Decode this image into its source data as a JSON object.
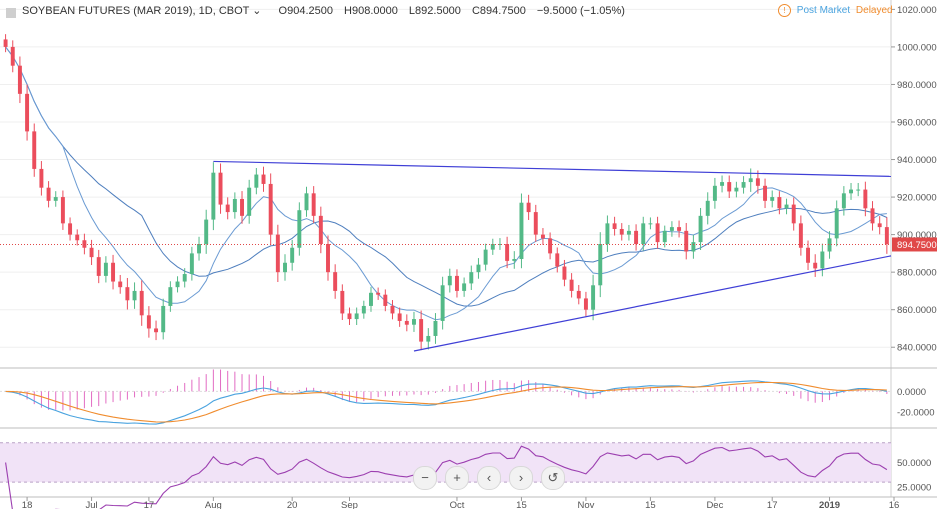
{
  "header": {
    "symbol": "SOYBEAN FUTURES (MAR 2019), 1D, CBOT",
    "dropdown_glyph": "⌄",
    "open": "O904.2500",
    "high": "H908.0000",
    "low": "L892.5000",
    "close": "C894.7500",
    "change": "−9.5000 (−1.05%)",
    "post_market": "Post Market",
    "delayed": "Delayed",
    "info_glyph": "!"
  },
  "colors": {
    "up": "#53b987",
    "down": "#eb4d5c",
    "trend": "#3f3fd6",
    "ma_fast": "#6b9bd3",
    "ma_slow": "#4f7fbe",
    "macd": "#4aa3df",
    "signal": "#f08c2e",
    "hist": "#e26cc3",
    "rsi": "#9c3fb0",
    "rsi_bg": "#f1e3f7",
    "price_line": "#e04848",
    "axis_text": "#555555"
  },
  "toolbar": {
    "zoom_out": "−",
    "zoom_in": "+",
    "back": "‹",
    "forward": "›",
    "reset": "↺"
  },
  "chart_data": [
    {
      "type": "candlestick",
      "name": "price",
      "ylim": [
        830,
        1025
      ],
      "yticks": [
        840,
        860,
        880,
        900,
        920,
        940,
        960,
        980,
        1000,
        1020
      ],
      "ytick_labels": [
        "840.0000",
        "860.0000",
        "880.0000",
        "900.0000",
        "920.0000",
        "940.0000",
        "960.0000",
        "980.0000",
        "1000.0000",
        "1020.0000"
      ],
      "last_price": 894.75,
      "last_price_label": "894.7500",
      "x_ticks": [
        {
          "index": 3,
          "label": "18"
        },
        {
          "index": 12,
          "label": "Jul"
        },
        {
          "index": 20,
          "label": "17"
        },
        {
          "index": 29,
          "label": "Aug"
        },
        {
          "index": 40,
          "label": "20"
        },
        {
          "index": 48,
          "label": "Sep"
        },
        {
          "index": 63,
          "label": "Oct"
        },
        {
          "index": 72,
          "label": "15"
        },
        {
          "index": 81,
          "label": "Nov"
        },
        {
          "index": 90,
          "label": "15"
        },
        {
          "index": 99,
          "label": "Dec"
        },
        {
          "index": 107,
          "label": "17"
        },
        {
          "index": 115,
          "label": "2019"
        },
        {
          "index": 124,
          "label": "16"
        }
      ],
      "closes": [
        1000,
        990,
        975,
        955,
        935,
        925,
        918,
        920,
        906,
        900,
        897,
        893,
        888,
        878,
        885,
        875,
        872,
        865,
        870,
        857,
        850,
        848,
        862,
        872,
        875,
        879,
        890,
        895,
        908,
        933,
        916,
        912,
        919,
        910,
        925,
        932,
        927,
        900,
        880,
        885,
        893,
        913,
        922,
        910,
        895,
        880,
        870,
        858,
        855,
        858,
        862,
        869,
        868,
        862,
        858,
        854,
        852,
        855,
        843,
        846,
        854,
        873,
        878,
        870,
        874,
        880,
        884,
        892,
        895,
        895,
        886,
        887,
        917,
        912,
        900,
        898,
        890,
        883,
        876,
        870,
        866,
        860,
        873,
        895,
        906,
        903,
        900,
        902,
        895,
        906,
        906,
        896,
        902,
        904,
        902,
        891,
        896,
        910,
        918,
        926,
        928,
        923,
        925,
        928,
        930,
        926,
        918,
        920,
        914,
        916,
        906,
        893,
        885,
        882,
        891,
        898,
        914,
        922,
        924,
        924,
        914,
        906,
        904,
        895
      ],
      "ranges": [
        8,
        10,
        14,
        14,
        12,
        12,
        10,
        9,
        10,
        9,
        8,
        10,
        12,
        11,
        10,
        12,
        10,
        14,
        13,
        16,
        14,
        12,
        11,
        9,
        8,
        9,
        10,
        11,
        15,
        16,
        14,
        11,
        10,
        12,
        12,
        10,
        12,
        16,
        15,
        13,
        12,
        12,
        10,
        11,
        14,
        13,
        12,
        10,
        9,
        9,
        8,
        9,
        8,
        8,
        9,
        9,
        10,
        11,
        13,
        12,
        12,
        13,
        11,
        10,
        9,
        10,
        10,
        9,
        8,
        9,
        11,
        12,
        14,
        12,
        11,
        10,
        9,
        9,
        10,
        10,
        9,
        10,
        16,
        18,
        12,
        10,
        9,
        9,
        10,
        10,
        9,
        10,
        8,
        9,
        10,
        12,
        11,
        12,
        13,
        12,
        10,
        10,
        9,
        9,
        15,
        12,
        11,
        10,
        9,
        9,
        11,
        12,
        11,
        13,
        12,
        11,
        12,
        11,
        10,
        10,
        12,
        11,
        11,
        15
      ],
      "trendlines": [
        {
          "from": [
            29,
            939
          ],
          "to": [
            124,
            931
          ]
        },
        {
          "from": [
            57,
            838
          ],
          "to": [
            124,
            889
          ]
        }
      ]
    },
    {
      "type": "line",
      "name": "macd",
      "ylim": [
        -34,
        22
      ],
      "yticks": [
        0,
        -20
      ],
      "ytick_labels": [
        "0.0000",
        "-20.0000"
      ]
    },
    {
      "type": "line",
      "name": "rsi",
      "ylim": [
        20,
        82
      ],
      "band": [
        30,
        70
      ],
      "yticks": [
        50,
        25
      ],
      "ytick_labels": [
        "50.0000",
        "25.0000"
      ]
    }
  ]
}
